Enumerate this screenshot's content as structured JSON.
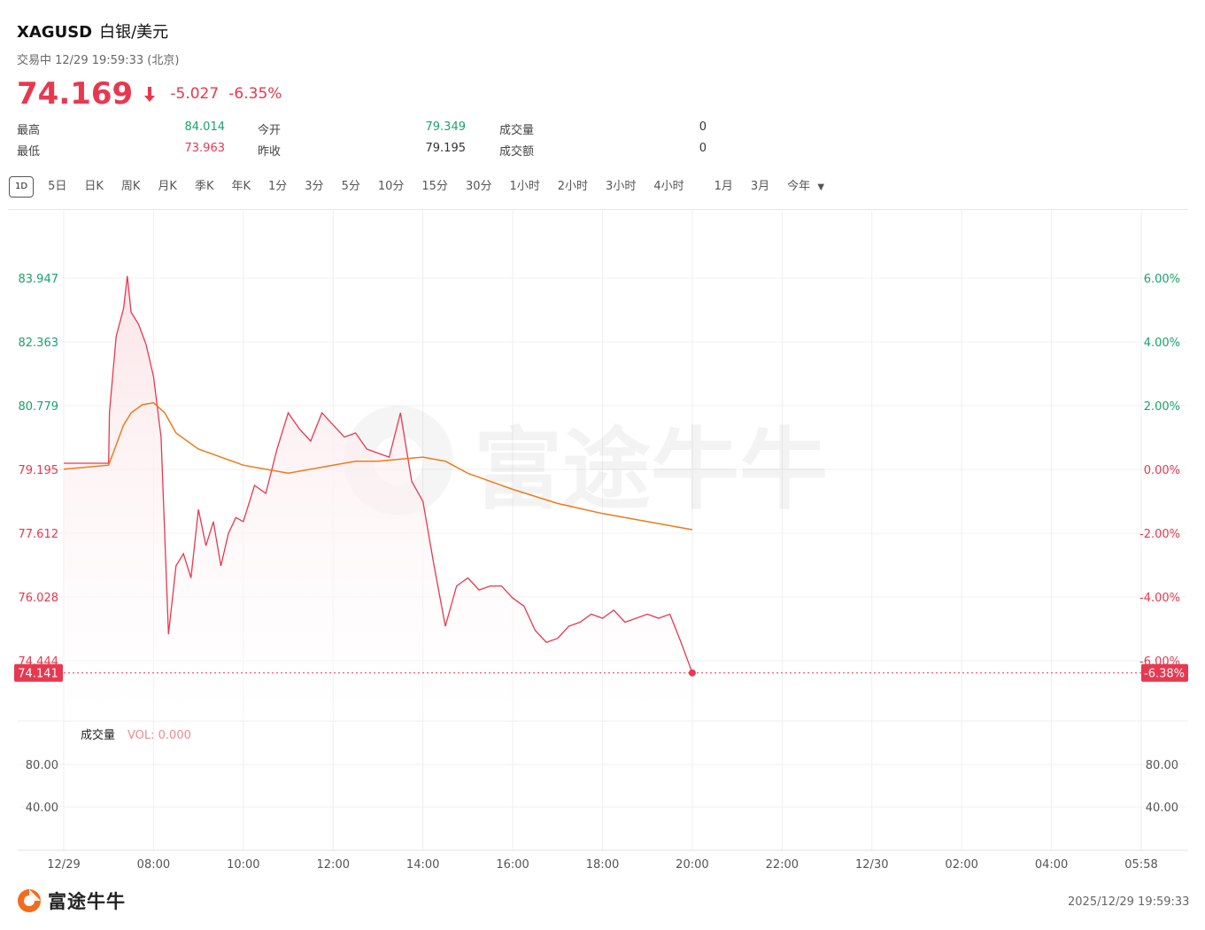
{
  "header": {
    "symbol": "XAGUSD",
    "name_cn": "白银/美元",
    "status": "交易中 12/29 19:59:33 (北京)",
    "price": "74.169",
    "change": "-5.027",
    "change_pct": "-6.35%"
  },
  "stats": {
    "high_label": "最高",
    "high_value": "84.014",
    "low_label": "最低",
    "low_value": "73.963",
    "open_label": "今开",
    "open_value": "79.349",
    "prev_close_label": "昨收",
    "prev_close_value": "79.195",
    "volume_label": "成交量",
    "volume_value": "0",
    "turnover_label": "成交额",
    "turnover_value": "0"
  },
  "tabs": [
    "1D",
    "5日",
    "日K",
    "周K",
    "月K",
    "季K",
    "年K",
    "1分",
    "3分",
    "5分",
    "10分",
    "15分",
    "30分",
    "1小时",
    "2小时",
    "3小时",
    "4小时",
    "1月",
    "3月",
    "今年"
  ],
  "active_tab": "1D",
  "watermark": "富途牛牛",
  "footer": {
    "logo_text": "富途牛牛",
    "timestamp": "2025/12/29 19:59:33"
  },
  "colors": {
    "down": "#e8384f",
    "up": "#1aa36a",
    "avg_line": "#ef7a1a",
    "fill": "#fbe3e6"
  },
  "chart_data": [
    {
      "type": "line",
      "title": "",
      "y_ticks_left": [
        "83.947",
        "82.363",
        "80.779",
        "79.195",
        "77.612",
        "76.028",
        "74.444"
      ],
      "y_ticks_right": [
        "6.00%",
        "4.00%",
        "2.00%",
        "0.00%",
        "-2.00%",
        "-4.00%",
        "-6.00%"
      ],
      "x_ticks": [
        "12/29",
        "08:00",
        "10:00",
        "12:00",
        "14:00",
        "16:00",
        "18:00",
        "20:00",
        "22:00",
        "12/30",
        "02:00",
        "04:00",
        "05:58"
      ],
      "reference_price": 79.195,
      "last_price_label": "74.141",
      "last_pct_label": "-6.38%",
      "series": [
        {
          "name": "",
          "x": [
            "06:00",
            "07:00",
            "07:01",
            "07:10",
            "07:20",
            "07:25",
            "07:30",
            "07:40",
            "07:50",
            "08:00",
            "08:10",
            "08:20",
            "08:30",
            "08:40",
            "08:50",
            "09:00",
            "09:10",
            "09:20",
            "09:30",
            "09:40",
            "09:50",
            "10:00",
            "10:15",
            "10:30",
            "10:45",
            "11:00",
            "11:15",
            "11:30",
            "11:45",
            "12:00",
            "12:15",
            "12:30",
            "12:45",
            "13:00",
            "13:15",
            "13:30",
            "13:45",
            "14:00",
            "14:15",
            "14:30",
            "14:45",
            "15:00",
            "15:15",
            "15:30",
            "15:45",
            "16:00",
            "16:15",
            "16:30",
            "16:45",
            "17:00",
            "17:15",
            "17:30",
            "17:45",
            "18:00",
            "18:15",
            "18:30",
            "18:45",
            "19:00",
            "19:15",
            "19:30",
            "19:45",
            "20:00"
          ],
          "values": [
            79.35,
            79.35,
            80.6,
            82.5,
            83.2,
            84.0,
            83.1,
            82.8,
            82.3,
            81.5,
            80.0,
            75.1,
            76.8,
            77.1,
            76.5,
            78.2,
            77.3,
            77.9,
            76.8,
            77.6,
            78.0,
            77.9,
            78.8,
            78.6,
            79.7,
            80.6,
            80.2,
            79.9,
            80.6,
            80.3,
            80.0,
            80.1,
            79.7,
            79.6,
            79.5,
            80.6,
            78.9,
            78.4,
            76.8,
            75.3,
            76.3,
            76.5,
            76.2,
            76.3,
            76.3,
            76.0,
            75.8,
            75.2,
            74.9,
            75.0,
            75.3,
            75.4,
            75.6,
            75.5,
            75.7,
            75.4,
            75.5,
            75.6,
            75.5,
            75.6,
            74.9,
            74.141
          ]
        },
        {
          "name": "",
          "x": [
            "06:00",
            "07:00",
            "07:10",
            "07:20",
            "07:30",
            "07:45",
            "08:00",
            "08:15",
            "08:30",
            "09:00",
            "09:30",
            "10:00",
            "10:30",
            "11:00",
            "11:30",
            "12:00",
            "12:30",
            "13:00",
            "13:30",
            "14:00",
            "14:30",
            "15:00",
            "15:30",
            "16:00",
            "17:00",
            "18:00",
            "19:00",
            "20:00"
          ],
          "values": [
            79.2,
            79.3,
            79.8,
            80.3,
            80.6,
            80.8,
            80.85,
            80.6,
            80.1,
            79.7,
            79.5,
            79.3,
            79.2,
            79.1,
            79.2,
            79.3,
            79.4,
            79.4,
            79.45,
            79.5,
            79.4,
            79.1,
            78.9,
            78.7,
            78.35,
            78.1,
            77.9,
            77.7
          ]
        }
      ]
    },
    {
      "type": "bar",
      "title": "成交量",
      "legend": "VOL: 0.000",
      "y_ticks_left": [
        "80.00",
        "40.00"
      ],
      "y_ticks_right": [
        "80.00",
        "40.00"
      ],
      "values": []
    }
  ]
}
